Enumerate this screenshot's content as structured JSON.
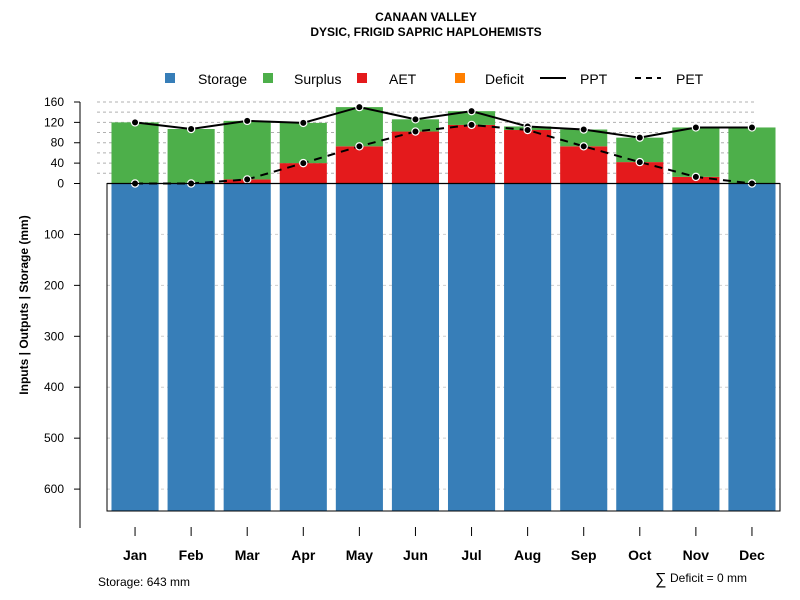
{
  "chart_data": {
    "type": "bar",
    "title": "CANAAN VALLEY",
    "subtitle": "DYSIC, FRIGID SAPRIC HAPLOHEMISTS",
    "ylabel": "Inputs | Outputs | Storage    (mm)",
    "categories": [
      "Jan",
      "Feb",
      "Mar",
      "Apr",
      "May",
      "Jun",
      "Jul",
      "Aug",
      "Sep",
      "Oct",
      "Nov",
      "Dec"
    ],
    "ylim": [
      -643,
      160
    ],
    "upper_ticks": [
      160,
      120,
      80,
      40,
      0
    ],
    "lower_ticks": [
      100,
      200,
      300,
      400,
      500,
      600
    ],
    "legend": [
      "Storage",
      "Surplus",
      "AET",
      "Deficit",
      "PPT",
      "PET"
    ],
    "colors": {
      "storage": "#377EB8",
      "surplus": "#4DAF4A",
      "aet": "#E41A1C",
      "deficit": "#FF7F00",
      "ppt": "#000000",
      "pet": "#000000"
    },
    "storage": 643,
    "series": [
      {
        "name": "PPT",
        "values": [
          120,
          107,
          123,
          119,
          150,
          126,
          142,
          112,
          106,
          90,
          110,
          110
        ]
      },
      {
        "name": "PET",
        "values": [
          0,
          0,
          8,
          40,
          73,
          102,
          115,
          105,
          73,
          42,
          13,
          0
        ]
      },
      {
        "name": "AET",
        "values": [
          0,
          0,
          8,
          40,
          73,
          102,
          115,
          105,
          73,
          42,
          13,
          0
        ]
      },
      {
        "name": "Surplus",
        "values": [
          120,
          107,
          115,
          79,
          77,
          24,
          27,
          7,
          33,
          48,
          97,
          110
        ]
      },
      {
        "name": "Deficit",
        "values": [
          0,
          0,
          0,
          0,
          0,
          0,
          0,
          0,
          0,
          0,
          0,
          0
        ]
      }
    ]
  },
  "footer": {
    "storage_text": "Storage: 643 mm",
    "deficit_symbol": "∑",
    "deficit_text": "Deficit = 0 mm"
  }
}
